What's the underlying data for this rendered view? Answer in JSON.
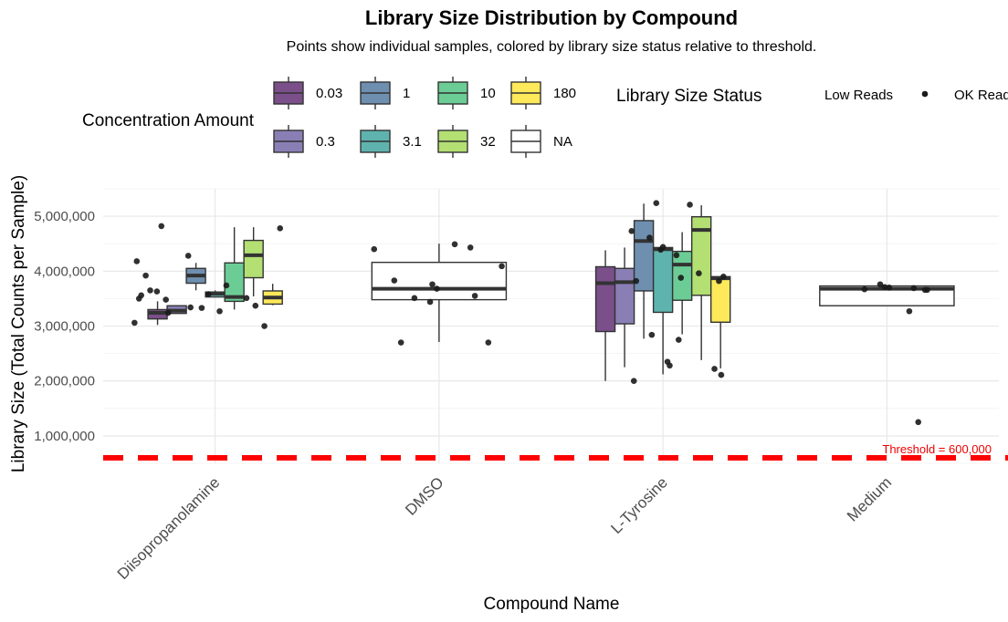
{
  "chart_data": {
    "type": "boxplot",
    "title": "Library Size Distribution by Compound",
    "subtitle": "Points show individual samples, colored by library size status relative to threshold.",
    "xlabel": "Compound Name",
    "ylabel": "Library Size (Total Counts per Sample)",
    "ylim": [
      500000,
      5500000
    ],
    "yticks": [
      1000000,
      2000000,
      3000000,
      4000000,
      5000000
    ],
    "ytick_labels": [
      "1,000,000",
      "2,000,000",
      "3,000,000",
      "4,000,000",
      "5,000,000"
    ],
    "categories": [
      "Diisopropanolamine",
      "DMSO",
      "L-Tyrosine",
      "Medium"
    ],
    "threshold": {
      "value": 600000,
      "label": "Threshold = 600,000",
      "color": "#ff0000"
    },
    "fill_legend": {
      "title": "Concentration Amount",
      "levels": [
        {
          "label": "0.03",
          "color": "#7a4f8a"
        },
        {
          "label": "1",
          "color": "#6f8fb0"
        },
        {
          "label": "10",
          "color": "#6bcd95"
        },
        {
          "label": "180",
          "color": "#fde95a"
        },
        {
          "label": "0.3",
          "color": "#8a7fb5"
        },
        {
          "label": "3.1",
          "color": "#5fb3ae"
        },
        {
          "label": "32",
          "color": "#b3df73"
        },
        {
          "label": "NA",
          "color": "#ffffff"
        }
      ]
    },
    "point_legend": {
      "title": "Library Size Status",
      "entries": [
        "Low Reads",
        "OK Reads"
      ]
    },
    "boxes": [
      {
        "category": "Diisopropanolamine",
        "level": "0.03",
        "q1": 3130000,
        "median": 3240000,
        "q3": 3300000,
        "min": 3020000,
        "max": 3450000
      },
      {
        "category": "Diisopropanolamine",
        "level": "0.3",
        "q1": 3230000,
        "median": 3280000,
        "q3": 3370000,
        "min": 3230000,
        "max": 3370000
      },
      {
        "category": "Diisopropanolamine",
        "level": "1",
        "q1": 3780000,
        "median": 3920000,
        "q3": 4050000,
        "min": 3650000,
        "max": 4150000
      },
      {
        "category": "Diisopropanolamine",
        "level": "3.1",
        "q1": 3530000,
        "median": 3590000,
        "q3": 3620000,
        "min": 3530000,
        "max": 3650000
      },
      {
        "category": "Diisopropanolamine",
        "level": "10",
        "q1": 3450000,
        "median": 3530000,
        "q3": 4150000,
        "min": 3300000,
        "max": 4800000
      },
      {
        "category": "Diisopropanolamine",
        "level": "32",
        "q1": 3880000,
        "median": 4290000,
        "q3": 4560000,
        "min": 3540000,
        "max": 4800000
      },
      {
        "category": "Diisopropanolamine",
        "level": "180",
        "q1": 3400000,
        "median": 3520000,
        "q3": 3640000,
        "min": 3380000,
        "max": 3770000
      },
      {
        "category": "DMSO",
        "level": "NA",
        "q1": 3480000,
        "median": 3680000,
        "q3": 4160000,
        "min": 2710000,
        "max": 4500000
      },
      {
        "category": "L-Tyrosine",
        "level": "0.03",
        "q1": 2900000,
        "median": 3780000,
        "q3": 4080000,
        "min": 2000000,
        "max": 4380000
      },
      {
        "category": "L-Tyrosine",
        "level": "0.3",
        "q1": 3040000,
        "median": 3800000,
        "q3": 4050000,
        "min": 2250000,
        "max": 4430000
      },
      {
        "category": "L-Tyrosine",
        "level": "1",
        "q1": 3640000,
        "median": 4550000,
        "q3": 4920000,
        "min": 2770000,
        "max": 5230000
      },
      {
        "category": "L-Tyrosine",
        "level": "3.1",
        "q1": 3250000,
        "median": 4400000,
        "q3": 4430000,
        "min": 2120000,
        "max": 4430000
      },
      {
        "category": "L-Tyrosine",
        "level": "10",
        "q1": 3470000,
        "median": 4120000,
        "q3": 4360000,
        "min": 2850000,
        "max": 4710000
      },
      {
        "category": "L-Tyrosine",
        "level": "32",
        "q1": 3560000,
        "median": 4750000,
        "q3": 4990000,
        "min": 2380000,
        "max": 5200000
      },
      {
        "category": "L-Tyrosine",
        "level": "180",
        "q1": 3070000,
        "median": 3870000,
        "q3": 3900000,
        "min": 2230000,
        "max": 3900000
      },
      {
        "category": "Medium",
        "level": "NA",
        "q1": 3370000,
        "median": 3680000,
        "q3": 3730000,
        "min": 3370000,
        "max": 3730000
      }
    ],
    "points": [
      {
        "category": "Diisopropanolamine",
        "jitter": -0.35,
        "y": 4180000
      },
      {
        "category": "Diisopropanolamine",
        "jitter": -0.36,
        "y": 3060000
      },
      {
        "category": "Diisopropanolamine",
        "jitter": -0.34,
        "y": 3500000
      },
      {
        "category": "Diisopropanolamine",
        "jitter": -0.33,
        "y": 3560000
      },
      {
        "category": "Diisopropanolamine",
        "jitter": -0.31,
        "y": 3920000
      },
      {
        "category": "Diisopropanolamine",
        "jitter": -0.29,
        "y": 3650000
      },
      {
        "category": "Diisopropanolamine",
        "jitter": -0.26,
        "y": 3630000
      },
      {
        "category": "Diisopropanolamine",
        "jitter": -0.24,
        "y": 4820000
      },
      {
        "category": "Diisopropanolamine",
        "jitter": -0.22,
        "y": 3480000
      },
      {
        "category": "Diisopropanolamine",
        "jitter": -0.21,
        "y": 3240000
      },
      {
        "category": "Diisopropanolamine",
        "jitter": -0.12,
        "y": 4280000
      },
      {
        "category": "Diisopropanolamine",
        "jitter": -0.11,
        "y": 3340000
      },
      {
        "category": "Diisopropanolamine",
        "jitter": -0.06,
        "y": 3330000
      },
      {
        "category": "Diisopropanolamine",
        "jitter": -0.03,
        "y": 3580000
      },
      {
        "category": "Diisopropanolamine",
        "jitter": 0.02,
        "y": 3270000
      },
      {
        "category": "Diisopropanolamine",
        "jitter": 0.05,
        "y": 3740000
      },
      {
        "category": "Diisopropanolamine",
        "jitter": 0.14,
        "y": 3510000
      },
      {
        "category": "Diisopropanolamine",
        "jitter": 0.18,
        "y": 3370000
      },
      {
        "category": "Diisopropanolamine",
        "jitter": 0.22,
        "y": 3000000
      },
      {
        "category": "Diisopropanolamine",
        "jitter": 0.29,
        "y": 4780000
      },
      {
        "category": "DMSO",
        "jitter": -0.29,
        "y": 4400000
      },
      {
        "category": "DMSO",
        "jitter": -0.2,
        "y": 3830000
      },
      {
        "category": "DMSO",
        "jitter": -0.17,
        "y": 2700000
      },
      {
        "category": "DMSO",
        "jitter": -0.11,
        "y": 3510000
      },
      {
        "category": "DMSO",
        "jitter": -0.04,
        "y": 3440000
      },
      {
        "category": "DMSO",
        "jitter": -0.03,
        "y": 3760000
      },
      {
        "category": "DMSO",
        "jitter": -0.01,
        "y": 3680000
      },
      {
        "category": "DMSO",
        "jitter": 0.07,
        "y": 4490000
      },
      {
        "category": "DMSO",
        "jitter": 0.14,
        "y": 4430000
      },
      {
        "category": "DMSO",
        "jitter": 0.16,
        "y": 3550000
      },
      {
        "category": "DMSO",
        "jitter": 0.22,
        "y": 2700000
      },
      {
        "category": "DMSO",
        "jitter": 0.28,
        "y": 4090000
      },
      {
        "category": "L-Tyrosine",
        "jitter": -0.14,
        "y": 4730000
      },
      {
        "category": "L-Tyrosine",
        "jitter": -0.13,
        "y": 2000000
      },
      {
        "category": "L-Tyrosine",
        "jitter": -0.12,
        "y": 3820000
      },
      {
        "category": "L-Tyrosine",
        "jitter": -0.06,
        "y": 4610000
      },
      {
        "category": "L-Tyrosine",
        "jitter": -0.05,
        "y": 2840000
      },
      {
        "category": "L-Tyrosine",
        "jitter": -0.03,
        "y": 5240000
      },
      {
        "category": "L-Tyrosine",
        "jitter": -0.01,
        "y": 4390000
      },
      {
        "category": "L-Tyrosine",
        "jitter": 0.0,
        "y": 4440000
      },
      {
        "category": "L-Tyrosine",
        "jitter": 0.02,
        "y": 2350000
      },
      {
        "category": "L-Tyrosine",
        "jitter": 0.03,
        "y": 2280000
      },
      {
        "category": "L-Tyrosine",
        "jitter": 0.06,
        "y": 4290000
      },
      {
        "category": "L-Tyrosine",
        "jitter": 0.07,
        "y": 2750000
      },
      {
        "category": "L-Tyrosine",
        "jitter": 0.08,
        "y": 3880000
      },
      {
        "category": "L-Tyrosine",
        "jitter": 0.12,
        "y": 5210000
      },
      {
        "category": "L-Tyrosine",
        "jitter": 0.16,
        "y": 3960000
      },
      {
        "category": "L-Tyrosine",
        "jitter": 0.23,
        "y": 2220000
      },
      {
        "category": "L-Tyrosine",
        "jitter": 0.25,
        "y": 3820000
      },
      {
        "category": "L-Tyrosine",
        "jitter": 0.26,
        "y": 2110000
      },
      {
        "category": "L-Tyrosine",
        "jitter": 0.27,
        "y": 3900000
      },
      {
        "category": "Medium",
        "jitter": -0.1,
        "y": 3670000
      },
      {
        "category": "Medium",
        "jitter": -0.03,
        "y": 3760000
      },
      {
        "category": "Medium",
        "jitter": -0.01,
        "y": 3710000
      },
      {
        "category": "Medium",
        "jitter": 0.01,
        "y": 3700000
      },
      {
        "category": "Medium",
        "jitter": 0.1,
        "y": 3270000
      },
      {
        "category": "Medium",
        "jitter": 0.12,
        "y": 3690000
      },
      {
        "category": "Medium",
        "jitter": 0.14,
        "y": 1250000
      },
      {
        "category": "Medium",
        "jitter": 0.17,
        "y": 3660000
      },
      {
        "category": "Medium",
        "jitter": 0.18,
        "y": 3660000
      }
    ],
    "grid": true,
    "legend_position": "top"
  }
}
